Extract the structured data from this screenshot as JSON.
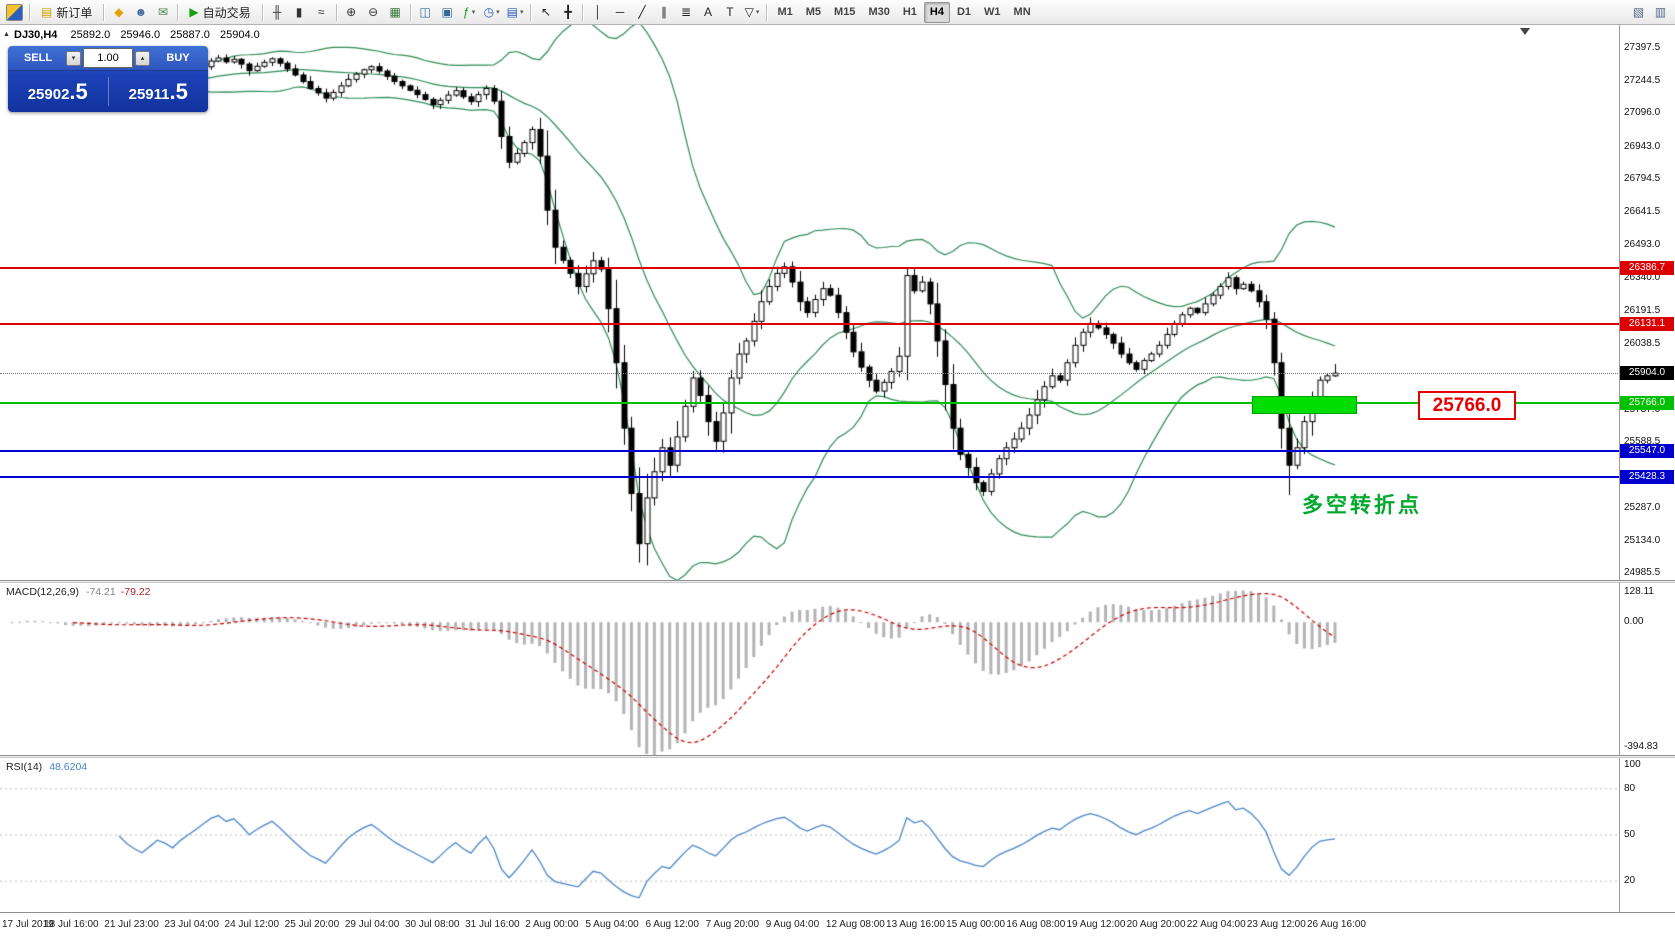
{
  "icons": {
    "collapse": "▲",
    "spin_up": "▴",
    "spin_down": "▾"
  },
  "symbol_line": {
    "symbol": "DJ30,H4",
    "open": "25892.0",
    "high": "25946.0",
    "low": "25887.0",
    "close": "25904.0"
  },
  "trade_panel": {
    "sell_label": "SELL",
    "buy_label": "BUY",
    "lot": "1.00",
    "sell_main": "25902",
    "sell_frac": ".5",
    "buy_main": "25911",
    "buy_frac": ".5"
  },
  "annotations": {
    "price_callout": "25766.0",
    "turning_point": "多空转折点"
  },
  "toolbar": {
    "groups": [
      [
        {
          "t": "app",
          "n": "metatrader-logo"
        }
      ],
      [
        {
          "t": "lbl",
          "n": "new-order",
          "g": "▤",
          "c": "#caa400",
          "label": "新订单"
        }
      ],
      [
        {
          "t": "btn",
          "n": "metaeditor",
          "g": "◆",
          "c": "#e0a400"
        },
        {
          "t": "btn",
          "n": "market-watch",
          "g": "☻",
          "c": "#4a6da0"
        },
        {
          "t": "btn",
          "n": "terminal",
          "g": "✉",
          "c": "#44884a"
        }
      ],
      [
        {
          "t": "lbl",
          "n": "autotrading",
          "g": "▶",
          "c": "#13a113",
          "label": "自动交易"
        }
      ],
      [
        {
          "t": "btn",
          "n": "bar-chart",
          "g": "╫",
          "c": "#333333"
        },
        {
          "t": "btn",
          "n": "candlestick-chart",
          "g": "▮",
          "c": "#333333"
        },
        {
          "t": "btn",
          "n": "line-chart",
          "g": "≈",
          "c": "#333333"
        }
      ],
      [
        {
          "t": "btn",
          "n": "zoom-in",
          "g": "⊕",
          "c": "#333333"
        },
        {
          "t": "btn",
          "n": "zoom-out",
          "g": "⊖",
          "c": "#333333"
        },
        {
          "t": "btn",
          "n": "grid",
          "g": "▦",
          "c": "#3a7a3a"
        }
      ],
      [
        {
          "t": "btn",
          "n": "tile-windows",
          "g": "◫",
          "c": "#336699"
        },
        {
          "t": "btn",
          "n": "cascade-windows",
          "g": "▣",
          "c": "#336699"
        },
        {
          "t": "btn",
          "n": "indicators-list",
          "g": "ƒ",
          "c": "#13a113",
          "caret": true
        },
        {
          "t": "btn",
          "n": "periods",
          "g": "◷",
          "c": "#2a5db0",
          "caret": true
        },
        {
          "t": "btn",
          "n": "templates",
          "g": "▤",
          "c": "#2a5db0",
          "caret": true
        }
      ],
      [
        {
          "t": "btn",
          "n": "cursor",
          "g": "↖",
          "c": "#222222"
        },
        {
          "t": "btn",
          "n": "crosshair",
          "g": "╋",
          "c": "#222222"
        }
      ],
      [
        {
          "t": "btn",
          "n": "vertical-line",
          "g": "│",
          "c": "#222222"
        },
        {
          "t": "btn",
          "n": "horizontal-line",
          "g": "─",
          "c": "#222222"
        },
        {
          "t": "btn",
          "n": "trendline",
          "g": "╱",
          "c": "#222222"
        },
        {
          "t": "btn",
          "n": "equidistant-channel",
          "g": "∥",
          "c": "#222222"
        },
        {
          "t": "btn",
          "n": "fibonacci",
          "g": "≣",
          "c": "#222222"
        },
        {
          "t": "btn",
          "n": "text",
          "g": "A",
          "c": "#222222"
        },
        {
          "t": "btn",
          "n": "text-label",
          "g": "T",
          "c": "#222222"
        },
        {
          "t": "btn",
          "n": "arrows",
          "g": "▽",
          "c": "#222222",
          "caret": true
        }
      ],
      [
        {
          "t": "tf",
          "n": "timeframe-m1",
          "label": "M1"
        },
        {
          "t": "tf",
          "n": "timeframe-m5",
          "label": "M5"
        },
        {
          "t": "tf",
          "n": "timeframe-m15",
          "label": "M15"
        },
        {
          "t": "tf",
          "n": "timeframe-m30",
          "label": "M30"
        },
        {
          "t": "tf",
          "n": "timeframe-h1",
          "label": "H1"
        },
        {
          "t": "tf",
          "n": "timeframe-h4",
          "label": "H4",
          "active": true
        },
        {
          "t": "tf",
          "n": "timeframe-d1",
          "label": "D1"
        },
        {
          "t": "tf",
          "n": "timeframe-w1",
          "label": "W1"
        },
        {
          "t": "tf",
          "n": "timeframe-mn",
          "label": "MN"
        }
      ]
    ],
    "right": [
      {
        "t": "btn",
        "n": "new-chart",
        "g": "▧",
        "c": "#556688"
      },
      {
        "t": "btn",
        "n": "chart-profiles",
        "g": "▥",
        "c": "#556688"
      }
    ]
  },
  "chart_data": [
    {
      "type": "candlestick",
      "title": "DJ30,H4",
      "timeframe": "H4",
      "ohlc_display": {
        "open": 25892.0,
        "high": 25946.0,
        "low": 25887.0,
        "close": 25904.0
      },
      "ylim": [
        24955.5,
        27501.3
      ],
      "y_ticks": [
        27397.5,
        27244.5,
        27096.0,
        26943.0,
        26794.5,
        26641.5,
        26493.0,
        26340.0,
        26191.5,
        26038.5,
        25890.0,
        25737.0,
        25588.5,
        25435.5,
        25287.0,
        25134.0,
        24985.5
      ],
      "x_labels": [
        "17 Jul 2019",
        "18 Jul 16:00",
        "21 Jul 23:00",
        "23 Jul 04:00",
        "24 Jul 12:00",
        "25 Jul 20:00",
        "29 Jul 04:00",
        "30 Jul 08:00",
        "31 Jul 16:00",
        "2 Aug 00:00",
        "5 Aug 04:00",
        "6 Aug 12:00",
        "7 Aug 20:00",
        "9 Aug 04:00",
        "12 Aug 08:00",
        "13 Aug 16:00",
        "15 Aug 00:00",
        "16 Aug 08:00",
        "19 Aug 12:00",
        "20 Aug 20:00",
        "22 Aug 04:00",
        "23 Aug 12:00",
        "26 Aug 16:00"
      ],
      "open_first": 27272,
      "series": [
        {
          "name": "close",
          "values": [
            27290,
            27312,
            27330,
            27305,
            27286,
            27262,
            27240,
            27212,
            27236,
            27258,
            27246,
            27270,
            27290,
            27308,
            27286,
            27256,
            27232,
            27212,
            27232,
            27254,
            27242,
            27222,
            27246,
            27266,
            27286,
            27310,
            27336,
            27350,
            27332,
            27344,
            27322,
            27292,
            27312,
            27330,
            27346,
            27326,
            27300,
            27272,
            27242,
            27210,
            27190,
            27166,
            27192,
            27222,
            27252,
            27276,
            27296,
            27310,
            27290,
            27266,
            27242,
            27222,
            27202,
            27182,
            27160,
            27136,
            27156,
            27180,
            27200,
            27172,
            27150,
            27182,
            27210,
            27152,
            26990,
            26872,
            26912,
            26962,
            27022,
            26900,
            26652,
            26482,
            26422,
            26362,
            26302,
            26360,
            26420,
            26382,
            26200,
            25952,
            25652,
            25352,
            25122,
            25332,
            25452,
            25562,
            25482,
            25612,
            25752,
            25882,
            25802,
            25682,
            25592,
            25722,
            25882,
            25992,
            26052,
            26142,
            26232,
            26302,
            26362,
            26392,
            26322,
            26232,
            26182,
            26242,
            26292,
            26262,
            26182,
            26092,
            26002,
            25932,
            25872,
            25822,
            25862,
            25912,
            25982,
            26352,
            26282,
            26322,
            26222,
            26052,
            25852,
            25652,
            25532,
            25472,
            25402,
            25362,
            25442,
            25512,
            25562,
            25602,
            25652,
            25712,
            25782,
            25842,
            25892,
            25872,
            25952,
            26032,
            26092,
            26132,
            26112,
            26082,
            26042,
            25992,
            25952,
            25922,
            25962,
            25992,
            26032,
            26082,
            26132,
            26172,
            26202,
            26182,
            26222,
            26262,
            26302,
            26342,
            26292,
            26312,
            26282,
            26232,
            26152,
            25952,
            25652,
            25482,
            25562,
            25682,
            25792,
            25872,
            25892,
            25904
          ]
        }
      ],
      "wick_overrides": {
        "82": {
          "low": 25035
        },
        "92": {
          "low": 25545
        },
        "117": {
          "high": 26386
        },
        "127": {
          "low": 25341
        },
        "167": {
          "low": 25345
        },
        "173": {
          "high": 25946,
          "low": 25887
        }
      },
      "overlays": {
        "bollinger_bands": {
          "period": 20,
          "deviation": 2,
          "color": "#2e8b57"
        },
        "hlines": [
          {
            "value": 26386.7,
            "color": "#dd0000",
            "label": "26386.7"
          },
          {
            "value": 26131.1,
            "color": "#dd0000",
            "label": "26131.1"
          },
          {
            "value": 25766.0,
            "color": "#00c000",
            "label": "25766.0"
          },
          {
            "value": 25547.0,
            "color": "#0000cc",
            "label": "25547.0"
          },
          {
            "value": 25428.3,
            "color": "#0000cc",
            "label": "25428.3"
          }
        ],
        "current_price": {
          "value": 25904.0,
          "label": "25904.0",
          "color": "#000000"
        },
        "highlight_rect": {
          "x": 1252,
          "width": 105,
          "price_top": 25801,
          "price_bottom": 25716,
          "color": "#00dd00"
        }
      }
    },
    {
      "type": "bar",
      "name": "MACD(12,26,9)",
      "main_text": "-74.21",
      "signal_text": "-79.22",
      "axis_labels": [
        "128.11",
        "0.00",
        "-394.83"
      ],
      "histogram_color": "#b4b4b4",
      "signal_color": "#cc0000"
    },
    {
      "type": "line",
      "name": "RSI(14)",
      "value_text": "48.6204",
      "axis_labels": [
        100,
        80,
        50,
        20
      ],
      "levels": [
        80,
        50,
        20
      ],
      "ylim": [
        0,
        100
      ],
      "color": "#4a86c8"
    }
  ]
}
